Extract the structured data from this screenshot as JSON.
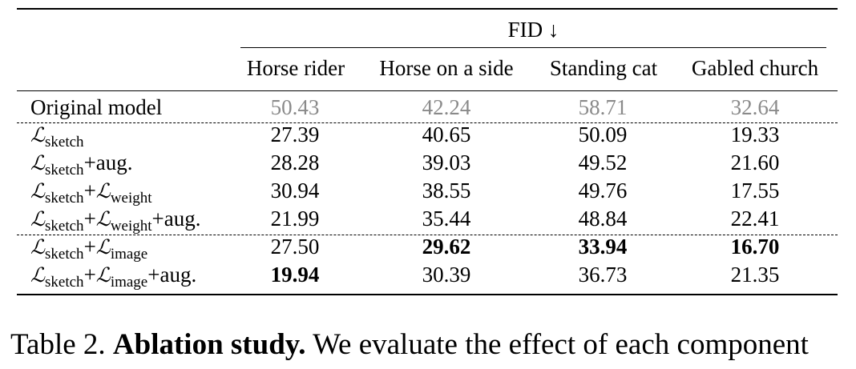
{
  "table": {
    "metric_header": "FID ↓",
    "columns": [
      "Horse rider",
      "Horse on a side",
      "Standing cat",
      "Gabled church"
    ],
    "rows": [
      {
        "label": "Original model",
        "values": [
          "50.43",
          "42.24",
          "58.71",
          "32.64"
        ]
      },
      {
        "label_parts": [
          {
            "sym": "ℒ",
            "sub": "sketch"
          }
        ],
        "values": [
          "27.39",
          "40.65",
          "50.09",
          "19.33"
        ]
      },
      {
        "label_parts": [
          {
            "sym": "ℒ",
            "sub": "sketch"
          },
          {
            "text": "+aug."
          }
        ],
        "values": [
          "28.28",
          "39.03",
          "49.52",
          "21.60"
        ]
      },
      {
        "label_parts": [
          {
            "sym": "ℒ",
            "sub": "sketch"
          },
          {
            "text": "+"
          },
          {
            "sym": "ℒ",
            "sub": "weight"
          }
        ],
        "values": [
          "30.94",
          "38.55",
          "49.76",
          "17.55"
        ]
      },
      {
        "label_parts": [
          {
            "sym": "ℒ",
            "sub": "sketch"
          },
          {
            "text": "+"
          },
          {
            "sym": "ℒ",
            "sub": "weight"
          },
          {
            "text": "+aug."
          }
        ],
        "values": [
          "21.99",
          "35.44",
          "48.84",
          "22.41"
        ]
      },
      {
        "label_parts": [
          {
            "sym": "ℒ",
            "sub": "sketch"
          },
          {
            "text": "+"
          },
          {
            "sym": "ℒ",
            "sub": "image"
          }
        ],
        "values": [
          "27.50",
          "29.62",
          "33.94",
          "16.70"
        ]
      },
      {
        "label_parts": [
          {
            "sym": "ℒ",
            "sub": "sketch"
          },
          {
            "text": "+"
          },
          {
            "sym": "ℒ",
            "sub": "image"
          },
          {
            "text": "+aug."
          }
        ],
        "values": [
          "19.94",
          "30.39",
          "36.73",
          "21.35"
        ]
      }
    ],
    "bold_cells": [
      [
        5,
        1
      ],
      [
        5,
        2
      ],
      [
        5,
        3
      ],
      [
        6,
        0
      ]
    ],
    "gray_row": 0,
    "gray_color": "#8a8a8a"
  },
  "caption": {
    "prefix": "Table 2. ",
    "bold": "Ablation study.",
    "rest": " We evaluate the effect of each component"
  }
}
